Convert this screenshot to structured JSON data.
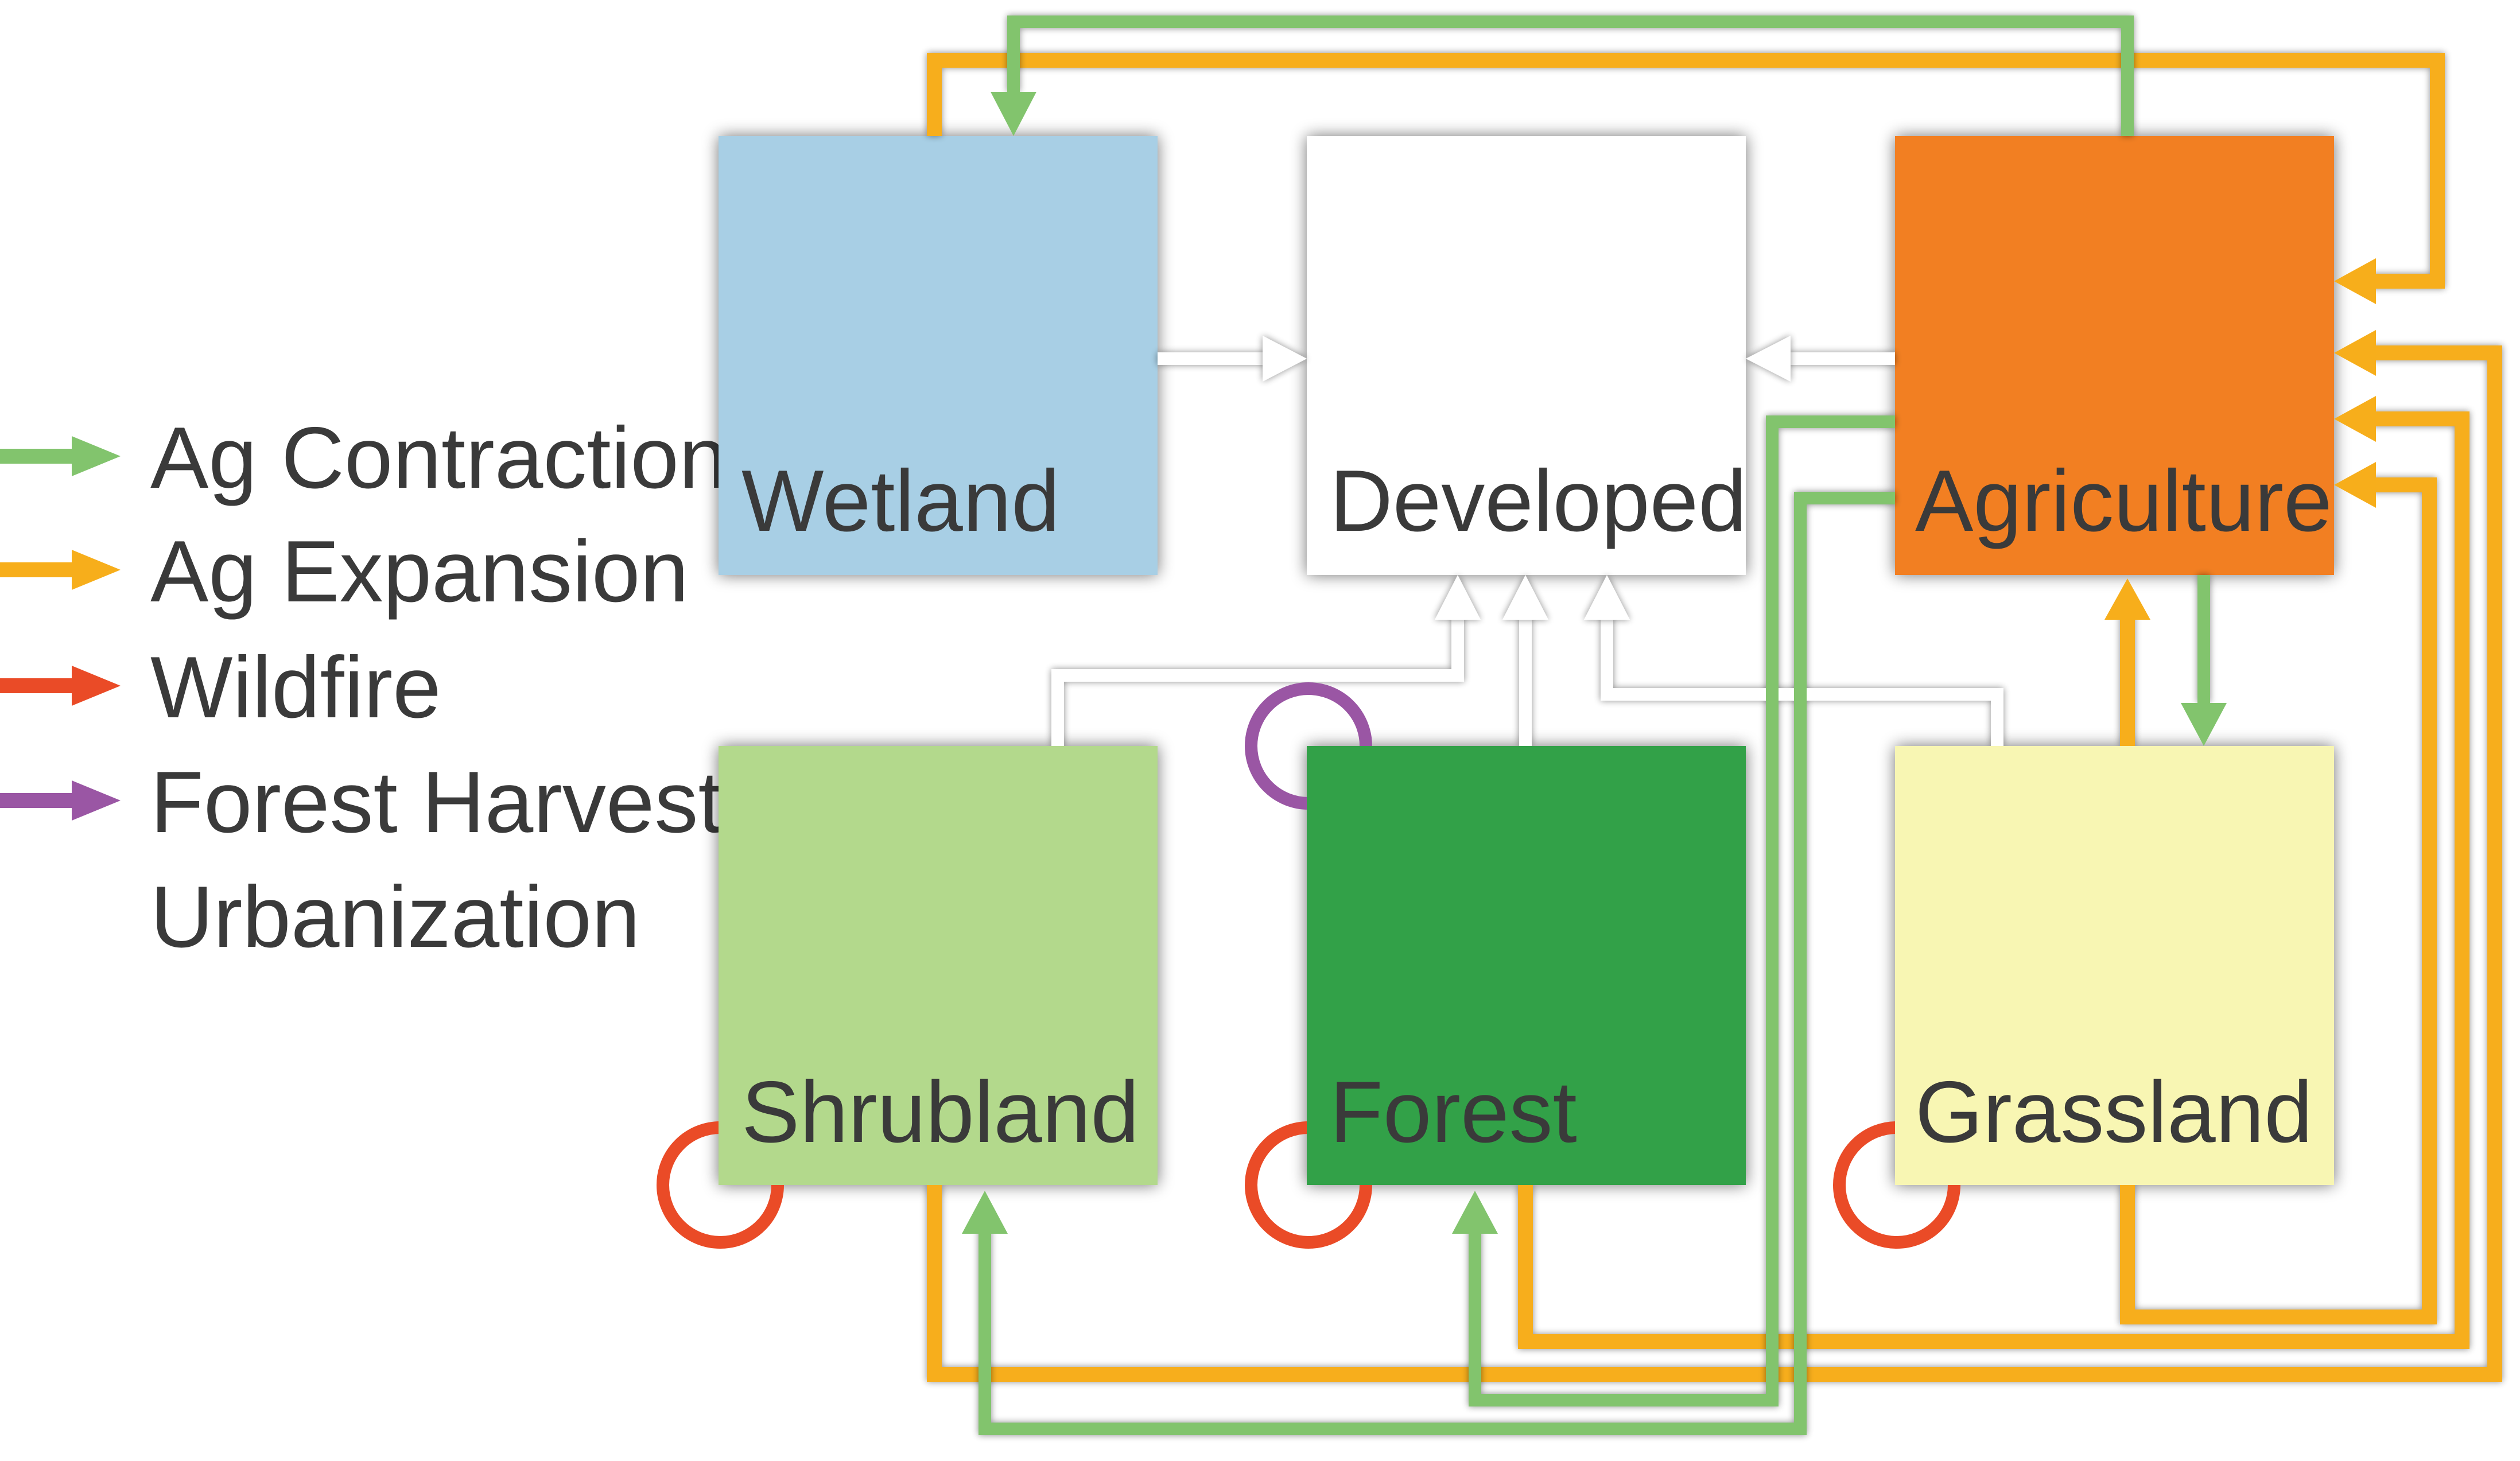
{
  "legend": [
    {
      "label": "Ag Contraction",
      "color": "#82c46d"
    },
    {
      "label": "Ag Expansion",
      "color": "#f7ae1b"
    },
    {
      "label": "Wildfire",
      "color": "#ea4b27"
    },
    {
      "label": "Forest Harvest",
      "color": "#9a56a4"
    },
    {
      "label": "Urbanization",
      "color": "#ffffff"
    }
  ],
  "boxes": {
    "wetland": {
      "label": "Wetland",
      "color": "#a8cfe5"
    },
    "developed": {
      "label": "Developed",
      "color": "#ffffff"
    },
    "agriculture": {
      "label": "Agriculture",
      "color": "#f27f21"
    },
    "shrubland": {
      "label": "Shrubland",
      "color": "#b3d98c"
    },
    "forest": {
      "label": "Forest",
      "color": "#32a148"
    },
    "grassland": {
      "label": "Grassland",
      "color": "#f8f6b3"
    }
  }
}
